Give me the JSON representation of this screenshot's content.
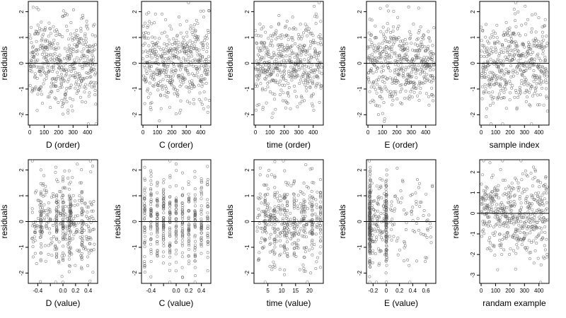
{
  "chart_data": [
    {
      "type": "scatter",
      "xlabel": "D (order)",
      "ylabel": "residuals",
      "xlim": [
        -10,
        470
      ],
      "ylim": [
        -2.4,
        2.4
      ],
      "xticks": [
        0,
        100,
        200,
        300,
        400
      ],
      "yticks": [
        -2,
        -1,
        0,
        1,
        2
      ],
      "hline": 0,
      "gen": {
        "kind": "order",
        "seed": 1,
        "n": 460
      }
    },
    {
      "type": "scatter",
      "xlabel": "C (order)",
      "ylabel": "residuals",
      "xlim": [
        -10,
        470
      ],
      "ylim": [
        -2.4,
        2.4
      ],
      "xticks": [
        0,
        100,
        200,
        300,
        400
      ],
      "yticks": [
        -2,
        -1,
        0,
        1,
        2
      ],
      "hline": 0,
      "gen": {
        "kind": "order",
        "seed": 2,
        "n": 460
      }
    },
    {
      "type": "scatter",
      "xlabel": "time (order)",
      "ylabel": "residuals",
      "xlim": [
        -10,
        470
      ],
      "ylim": [
        -2.4,
        2.4
      ],
      "xticks": [
        0,
        100,
        200,
        300,
        400
      ],
      "yticks": [
        -2,
        -1,
        0,
        1,
        2
      ],
      "hline": 0,
      "gen": {
        "kind": "order",
        "seed": 3,
        "n": 460
      }
    },
    {
      "type": "scatter",
      "xlabel": "E (order)",
      "ylabel": "residuals",
      "xlim": [
        -10,
        470
      ],
      "ylim": [
        -2.4,
        2.4
      ],
      "xticks": [
        0,
        100,
        200,
        300,
        400
      ],
      "yticks": [
        -2,
        -1,
        0,
        1,
        2
      ],
      "hline": 0,
      "gen": {
        "kind": "order",
        "seed": 4,
        "n": 460
      }
    },
    {
      "type": "scatter",
      "xlabel": "sample index",
      "ylabel": "residuals",
      "xlim": [
        -10,
        470
      ],
      "ylim": [
        -2.4,
        2.4
      ],
      "xticks": [
        0,
        100,
        200,
        300,
        400
      ],
      "yticks": [
        -2,
        -1,
        0,
        1,
        2
      ],
      "hline": 0,
      "gen": {
        "kind": "order",
        "seed": 5,
        "n": 460
      }
    },
    {
      "type": "scatter",
      "xlabel": "D (value)",
      "ylabel": "residuals",
      "xlim": [
        -0.55,
        0.55
      ],
      "ylim": [
        -2.4,
        2.4
      ],
      "xticks": [
        -0.4,
        -0.2,
        0.0,
        0.2,
        0.4
      ],
      "xtick_labels": [
        "-0.4",
        "",
        "0.0",
        "0.2",
        "0.4"
      ],
      "yticks": [
        -2,
        -1,
        0,
        1,
        2
      ],
      "hline": 0,
      "gen": {
        "kind": "continuous",
        "seed": 6,
        "n": 460,
        "xmin": -0.5,
        "xmax": 0.5,
        "stripes": [
          -0.35,
          -0.1,
          0.0,
          0.1,
          0.12,
          0.3
        ]
      }
    },
    {
      "type": "scatter",
      "xlabel": "C (value)",
      "ylabel": "residuals",
      "xlim": [
        -0.55,
        0.55
      ],
      "ylim": [
        -2.4,
        2.4
      ],
      "xticks": [
        -0.4,
        -0.2,
        0.0,
        0.2,
        0.4
      ],
      "xtick_labels": [
        "-0.4",
        "",
        "0.0",
        "0.2",
        "0.4"
      ],
      "yticks": [
        -2,
        -1,
        0,
        1,
        2
      ],
      "hline": 0,
      "gen": {
        "kind": "discrete",
        "seed": 7,
        "n": 460,
        "levels": [
          -0.5,
          -0.4,
          -0.3,
          -0.2,
          -0.1,
          0.0,
          0.1,
          0.2,
          0.3,
          0.4,
          0.5
        ],
        "jitter": 0.004
      }
    },
    {
      "type": "scatter",
      "xlabel": "time (value)",
      "ylabel": "residuals",
      "xlim": [
        0,
        25
      ],
      "ylim": [
        -2.4,
        2.4
      ],
      "xticks": [
        5,
        10,
        15,
        20
      ],
      "yticks": [
        -2,
        -1,
        0,
        1,
        2
      ],
      "hline": 0,
      "gen": {
        "kind": "continuous",
        "seed": 8,
        "n": 460,
        "xmin": 1,
        "xmax": 24,
        "stripes": [
          4,
          7.5,
          11,
          12,
          14.5,
          18,
          21,
          24
        ]
      }
    },
    {
      "type": "scatter",
      "xlabel": "E (value)",
      "ylabel": "residuals",
      "xlim": [
        -0.3,
        0.75
      ],
      "ylim": [
        -2.4,
        2.4
      ],
      "xticks": [
        -0.2,
        0.0,
        0.2,
        0.4,
        0.6
      ],
      "yticks": [
        -2,
        -1,
        0,
        1,
        2
      ],
      "hline": 0,
      "gen": {
        "kind": "skewed",
        "seed": 9,
        "n": 460
      }
    },
    {
      "type": "scatter",
      "xlabel": "randam example",
      "ylabel": "residuals",
      "xlim": [
        -10,
        470
      ],
      "ylim": [
        -3.4,
        2.6
      ],
      "xticks": [
        0,
        100,
        200,
        300,
        400
      ],
      "yticks": [
        -3,
        -2,
        -1,
        0,
        1,
        2
      ],
      "hline": 0,
      "gen": {
        "kind": "random",
        "seed": 10,
        "n": 460
      }
    }
  ]
}
